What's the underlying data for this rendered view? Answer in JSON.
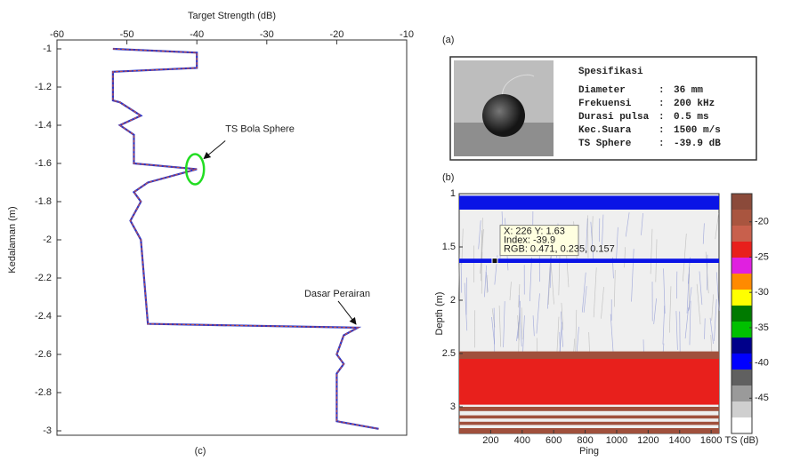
{
  "chart_data": [
    {
      "type": "line",
      "title": "Target Strength (dB)",
      "y_label": "Kedalaman (m)",
      "panel": "(c)",
      "x": [
        -52,
        -40,
        -40,
        -52,
        -52,
        -51,
        -48,
        -51,
        -49,
        -49,
        -40,
        -47,
        -49,
        -48,
        -49.5,
        -48,
        -47,
        -17,
        -19,
        -20,
        -19,
        -20,
        -20,
        -14
      ],
      "values": [
        -1,
        -1.02,
        -1.1,
        -1.12,
        -1.27,
        -1.28,
        -1.35,
        -1.4,
        -1.45,
        -1.6,
        -1.63,
        -1.7,
        -1.75,
        -1.8,
        -1.9,
        -2,
        -2.44,
        -2.46,
        -2.5,
        -2.6,
        -2.65,
        -2.7,
        -2.95,
        -2.99
      ],
      "colors": [
        "#2a35c8",
        "#c0504d"
      ],
      "xlim": [
        -60,
        -10
      ],
      "xticks": [
        -60,
        -50,
        -40,
        -30,
        -20,
        -10
      ],
      "ylim": [
        -3,
        -1
      ],
      "yticks": [
        -1,
        -1.2,
        -1.4,
        -1.6,
        -1.8,
        -2,
        -2.2,
        -2.4,
        -2.6,
        -2.8,
        -3
      ],
      "annotations": [
        {
          "text": "TS Bola Sphere",
          "x": -40,
          "y": -1.63
        },
        {
          "text": "Dasar Perairan",
          "x": -17,
          "y": -2.46
        }
      ]
    },
    {
      "type": "echogram",
      "panel": "(b)",
      "x_label": "Ping",
      "y_label": "Depth (m)",
      "colorbar_label": "TS (dB)",
      "xlim": [
        0,
        1650
      ],
      "xticks": [
        200,
        400,
        600,
        800,
        1000,
        1200,
        1400,
        1600
      ],
      "ylim": [
        1,
        3.25
      ],
      "yticks": [
        1,
        1.5,
        2,
        2.5,
        3
      ],
      "bands": [
        {
          "from": 1.02,
          "to": 1.15,
          "color": "#0a14e6"
        },
        {
          "from": 1.61,
          "to": 1.65,
          "color": "#0a14e6"
        },
        {
          "from": 2.48,
          "to": 2.55,
          "color": "#a0503c"
        },
        {
          "from": 2.55,
          "to": 2.98,
          "color": "#e8201c"
        },
        {
          "from": 3.0,
          "to": 3.04,
          "color": "#a0503c"
        },
        {
          "from": 3.08,
          "to": 3.11,
          "color": "#a0503c"
        },
        {
          "from": 3.14,
          "to": 3.17,
          "color": "#a0503c"
        },
        {
          "from": 3.2,
          "to": 3.25,
          "color": "#a0503c"
        }
      ],
      "datatip": {
        "x": 226,
        "y": 1.63,
        "lines": [
          "X: 226 Y: 1.63",
          "Index: -39.9",
          "RGB: 0.471, 0.235, 0.157"
        ]
      },
      "colorbar_colors": [
        "#8b4a3a",
        "#a9553f",
        "#c8604c",
        "#e8201c",
        "#e020e0",
        "#ff8a00",
        "#ffff00",
        "#007a00",
        "#00c000",
        "#00008a",
        "#0000ff",
        "#606060",
        "#9a9a9a",
        "#cfcfcf",
        "#ffffff"
      ],
      "colorbar_lim": [
        -50,
        -16
      ],
      "colorbar_ticks": [
        -20,
        -25,
        -30,
        -35,
        -40,
        -45
      ]
    }
  ],
  "photo_panel": {
    "panel": "(a)",
    "title": "Spesifikasi",
    "rows": [
      [
        "Diameter",
        ":",
        "36 mm"
      ],
      [
        "Frekuensi",
        ":",
        "200 kHz"
      ],
      [
        "Durasi pulsa",
        ":",
        "0.5 ms"
      ],
      [
        "Kec.Suara",
        ":",
        "1500 m/s"
      ],
      [
        "TS Sphere",
        ":",
        "-39.9 dB"
      ]
    ]
  }
}
